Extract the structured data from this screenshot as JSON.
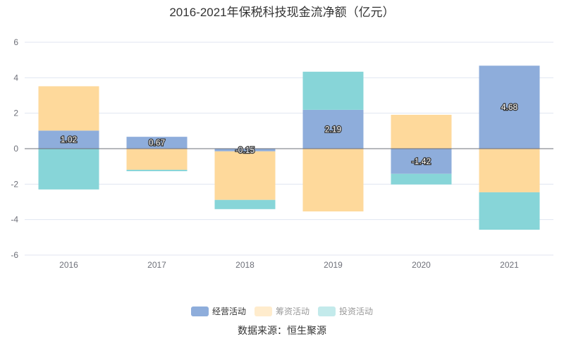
{
  "chart_data": {
    "type": "bar",
    "stacked": true,
    "title": "2016-2021年保税科技现金流净额（亿元）",
    "categories": [
      "2016",
      "2017",
      "2018",
      "2019",
      "2020",
      "2021"
    ],
    "series": [
      {
        "name": "经营活动",
        "color": "#8eaddb",
        "values": [
          1.02,
          0.67,
          -0.15,
          2.19,
          -1.42,
          4.68
        ],
        "labels": [
          "1.02",
          "0.67",
          "-0.15",
          "2.19",
          "-1.42",
          "4.68"
        ],
        "legend_active": true
      },
      {
        "name": "筹资活动",
        "color": "#fed99b",
        "legend_color": "#ffeccd",
        "values": [
          2.5,
          -1.19,
          -2.74,
          -3.54,
          1.91,
          -2.46
        ],
        "legend_active": false
      },
      {
        "name": "投资活动",
        "color": "#87d5d8",
        "legend_color": "#c3eaeb",
        "values": [
          -2.3,
          -0.08,
          -0.52,
          2.15,
          -0.6,
          -2.11
        ],
        "legend_active": false
      }
    ],
    "ylim": [
      -6,
      6
    ],
    "yticks": [
      "6",
      "4",
      "2",
      "0",
      "-2",
      "-4",
      "-6"
    ],
    "grid": true,
    "legend_position": "bottom"
  },
  "source": "数据来源：恒生聚源"
}
